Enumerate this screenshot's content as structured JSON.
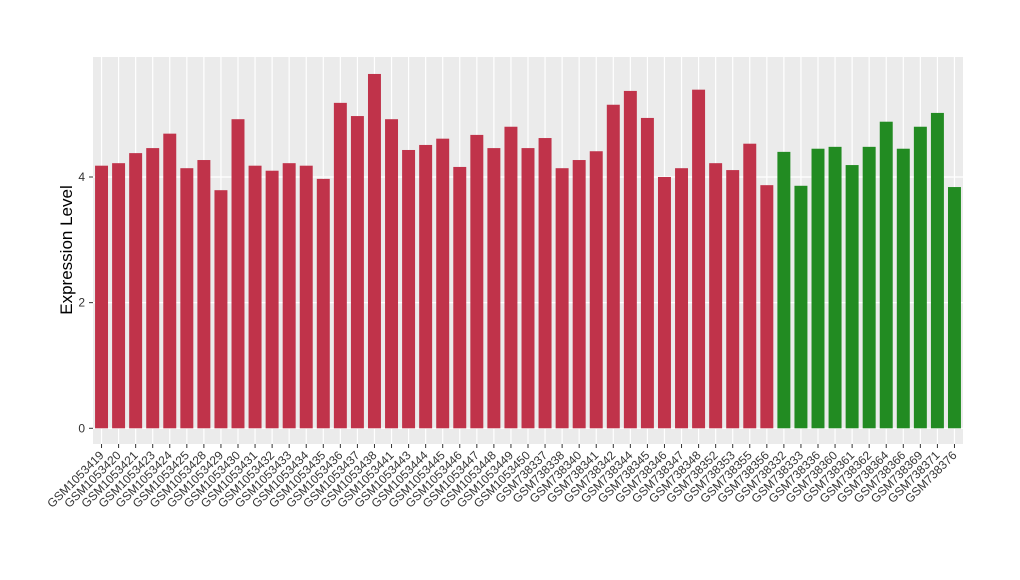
{
  "chart_data": {
    "type": "bar",
    "ylabel": "Expression Level",
    "categories": [
      "GSM1053419",
      "GSM1053420",
      "GSM1053421",
      "GSM1053423",
      "GSM1053424",
      "GSM1053425",
      "GSM1053428",
      "GSM1053429",
      "GSM1053430",
      "GSM1053431",
      "GSM1053432",
      "GSM1053433",
      "GSM1053434",
      "GSM1053435",
      "GSM1053436",
      "GSM1053437",
      "GSM1053438",
      "GSM1053441",
      "GSM1053443",
      "GSM1053444",
      "GSM1053445",
      "GSM1053446",
      "GSM1053447",
      "GSM1053448",
      "GSM1053449",
      "GSM1053450",
      "GSM738337",
      "GSM738338",
      "GSM738340",
      "GSM738341",
      "GSM738342",
      "GSM738344",
      "GSM738345",
      "GSM738346",
      "GSM738347",
      "GSM738348",
      "GSM738352",
      "GSM738353",
      "GSM738355",
      "GSM738356",
      "GSM738332",
      "GSM738333",
      "GSM738336",
      "GSM738360",
      "GSM738361",
      "GSM738362",
      "GSM738364",
      "GSM738366",
      "GSM738369",
      "GSM738371",
      "GSM738376"
    ],
    "values": [
      4.18,
      4.22,
      4.38,
      4.46,
      4.69,
      4.14,
      4.27,
      3.79,
      4.92,
      4.18,
      4.1,
      4.22,
      4.18,
      3.97,
      5.18,
      4.97,
      5.64,
      4.92,
      4.43,
      4.51,
      4.61,
      4.16,
      4.67,
      4.46,
      4.8,
      4.46,
      4.62,
      4.14,
      4.27,
      4.41,
      5.15,
      5.37,
      4.94,
      4.0,
      4.14,
      5.39,
      4.22,
      4.11,
      4.53,
      3.87,
      4.4,
      3.86,
      4.45,
      4.48,
      4.19,
      4.48,
      4.88,
      4.45,
      4.8,
      5.02,
      3.84
    ],
    "colors": [
      "#c0334a",
      "#c0334a",
      "#c0334a",
      "#c0334a",
      "#c0334a",
      "#c0334a",
      "#c0334a",
      "#c0334a",
      "#c0334a",
      "#c0334a",
      "#c0334a",
      "#c0334a",
      "#c0334a",
      "#c0334a",
      "#c0334a",
      "#c0334a",
      "#c0334a",
      "#c0334a",
      "#c0334a",
      "#c0334a",
      "#c0334a",
      "#c0334a",
      "#c0334a",
      "#c0334a",
      "#c0334a",
      "#c0334a",
      "#c0334a",
      "#c0334a",
      "#c0334a",
      "#c0334a",
      "#c0334a",
      "#c0334a",
      "#c0334a",
      "#c0334a",
      "#c0334a",
      "#c0334a",
      "#c0334a",
      "#c0334a",
      "#c0334a",
      "#c0334a",
      "#228b22",
      "#228b22",
      "#228b22",
      "#228b22",
      "#228b22",
      "#228b22",
      "#228b22",
      "#228b22",
      "#228b22",
      "#228b22",
      "#228b22"
    ],
    "ylim": [
      -0.25,
      5.91
    ],
    "yticks": [
      0,
      2,
      4
    ],
    "grid": true
  }
}
